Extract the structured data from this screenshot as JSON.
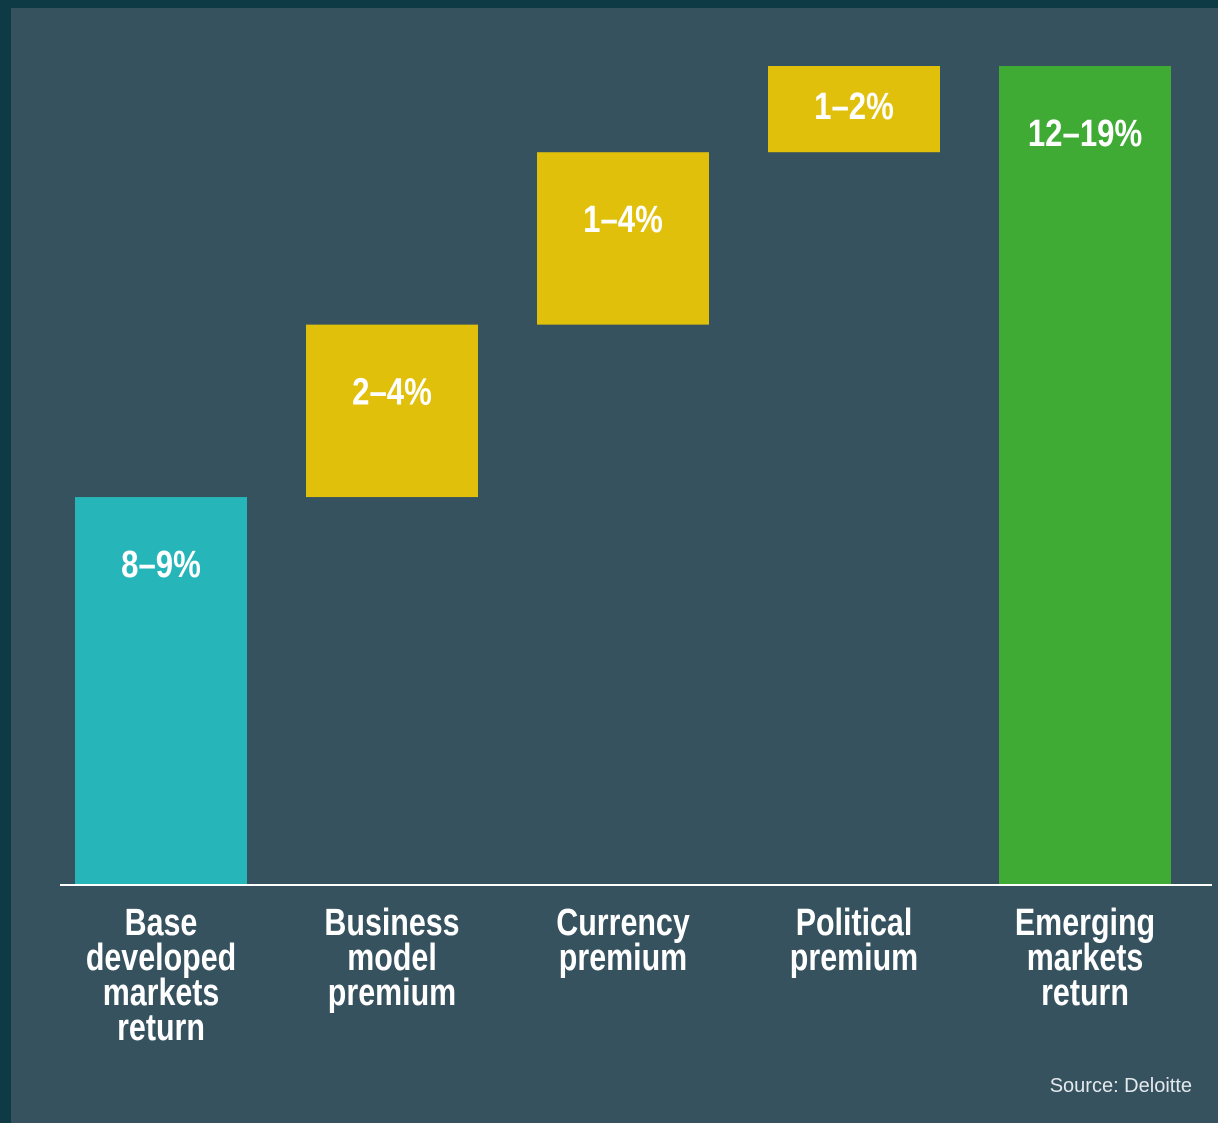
{
  "chart_data": {
    "type": "waterfall",
    "categories": [
      [
        "Base",
        "developed",
        "markets",
        "return"
      ],
      [
        "Business",
        "model",
        "premium"
      ],
      [
        "Currency",
        "premium"
      ],
      [
        "Political",
        "premium"
      ],
      [
        "Emerging",
        "markets",
        "return"
      ]
    ],
    "low": [
      8,
      2,
      1,
      1,
      12
    ],
    "high": [
      9,
      4,
      4,
      2,
      19
    ],
    "value_labels": [
      "8–9%",
      "2–4%",
      "1–4%",
      "1–2%",
      "12–19%"
    ],
    "kinds": [
      "total",
      "step",
      "step",
      "step",
      "total"
    ],
    "colors": [
      "#26b5b8",
      "#e0c00a",
      "#e0c00a",
      "#e0c00a",
      "#3fab35"
    ],
    "source": "Source: Deloitte"
  }
}
